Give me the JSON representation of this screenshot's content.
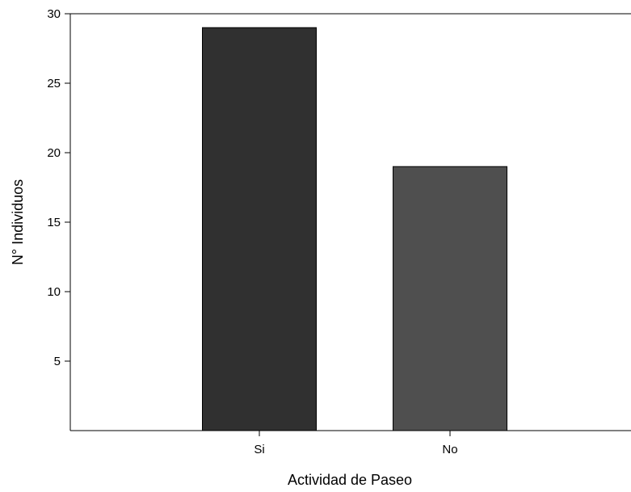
{
  "chart_data": {
    "type": "bar",
    "title": "",
    "xlabel": "Actividad de Paseo",
    "ylabel": "N° Individuos",
    "categories": [
      "Si",
      "No"
    ],
    "values": [
      29,
      19
    ],
    "ylim": [
      0,
      30
    ],
    "yticks": [
      5,
      10,
      15,
      20,
      25,
      30
    ],
    "bar_colors": [
      "#303030",
      "#4f4f4f"
    ],
    "grid": false,
    "legend": "none"
  }
}
